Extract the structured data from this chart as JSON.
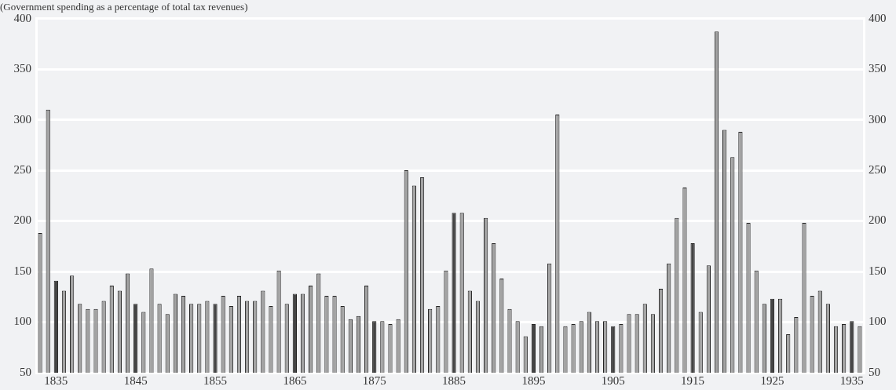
{
  "chart_data": {
    "type": "bar",
    "subtitle": "(Government spending as a percentage of total tax revenues)",
    "categories": [
      null,
      null,
      "1835",
      null,
      null,
      null,
      null,
      null,
      null,
      null,
      null,
      null,
      "1845",
      null,
      null,
      null,
      null,
      null,
      null,
      null,
      null,
      null,
      "1855",
      null,
      null,
      null,
      null,
      null,
      null,
      null,
      null,
      null,
      "1865",
      null,
      null,
      null,
      null,
      null,
      null,
      null,
      null,
      null,
      "1875",
      null,
      null,
      null,
      null,
      null,
      null,
      null,
      null,
      null,
      "1885",
      null,
      null,
      null,
      null,
      null,
      null,
      null,
      null,
      null,
      "1895",
      null,
      null,
      null,
      null,
      null,
      null,
      null,
      null,
      null,
      "1905",
      null,
      null,
      null,
      null,
      null,
      null,
      null,
      null,
      null,
      "1915",
      null,
      null,
      null,
      null,
      null,
      null,
      null,
      null,
      null,
      "1925",
      null,
      null,
      null,
      null,
      null,
      null,
      null,
      null,
      null,
      "1935",
      null
    ],
    "values": [
      188,
      310,
      141,
      131,
      146,
      118,
      113,
      113,
      121,
      136,
      131,
      148,
      118,
      110,
      153,
      118,
      108,
      128,
      126,
      118,
      118,
      121,
      118,
      126,
      116,
      126,
      121,
      121,
      131,
      116,
      151,
      118,
      128,
      128,
      136,
      148,
      126,
      126,
      116,
      103,
      106,
      136,
      101,
      101,
      98,
      103,
      250,
      235,
      243,
      113,
      116,
      151,
      208,
      208,
      131,
      121,
      203,
      178,
      143,
      113,
      101,
      86,
      98,
      96,
      158,
      305,
      96,
      98,
      101,
      110,
      101,
      101,
      96,
      98,
      108,
      108,
      118,
      108,
      133,
      158,
      203,
      233,
      178,
      110,
      156,
      387,
      290,
      263,
      288,
      198,
      151,
      118,
      123,
      123,
      88,
      105,
      198,
      126,
      131,
      118,
      96,
      98,
      101,
      96
    ],
    "colors": [
      "#a3a3a3",
      "#a3a3a3",
      "#444444",
      "#a3a3a3",
      "#a3a3a3",
      "#a3a3a3",
      "#a3a3a3",
      "#a3a3a3",
      "#a3a3a3",
      "#a3a3a3",
      "#a3a3a3",
      "#a3a3a3",
      "#444444",
      "#a3a3a3",
      "#a3a3a3",
      "#a3a3a3",
      "#a3a3a3",
      "#a3a3a3",
      "#a3a3a3",
      "#a3a3a3",
      "#a3a3a3",
      "#a3a3a3",
      "#444444",
      "#a3a3a3",
      "#a3a3a3",
      "#a3a3a3",
      "#a3a3a3",
      "#a3a3a3",
      "#a3a3a3",
      "#a3a3a3",
      "#a3a3a3",
      "#a3a3a3",
      "#444444",
      "#a3a3a3",
      "#a3a3a3",
      "#a3a3a3",
      "#a3a3a3",
      "#a3a3a3",
      "#a3a3a3",
      "#a3a3a3",
      "#a3a3a3",
      "#a3a3a3",
      "#444444",
      "#a3a3a3",
      "#a3a3a3",
      "#a3a3a3",
      "#a3a3a3",
      "#a3a3a3",
      "#a3a3a3",
      "#a3a3a3",
      "#a3a3a3",
      "#a3a3a3",
      "#444444",
      "#a3a3a3",
      "#a3a3a3",
      "#a3a3a3",
      "#a3a3a3",
      "#a3a3a3",
      "#a3a3a3",
      "#a3a3a3",
      "#a3a3a3",
      "#a3a3a3",
      "#444444",
      "#a3a3a3",
      "#a3a3a3",
      "#a3a3a3",
      "#a3a3a3",
      "#a3a3a3",
      "#a3a3a3",
      "#a3a3a3",
      "#a3a3a3",
      "#a3a3a3",
      "#444444",
      "#a3a3a3",
      "#a3a3a3",
      "#a3a3a3",
      "#a3a3a3",
      "#a3a3a3",
      "#a3a3a3",
      "#a3a3a3",
      "#a3a3a3",
      "#a3a3a3",
      "#444444",
      "#a3a3a3",
      "#a3a3a3",
      "#a3a3a3",
      "#a3a3a3",
      "#a3a3a3",
      "#a3a3a3",
      "#a3a3a3",
      "#a3a3a3",
      "#a3a3a3",
      "#444444",
      "#a3a3a3",
      "#a3a3a3",
      "#a3a3a3",
      "#a3a3a3",
      "#a3a3a3",
      "#a3a3a3",
      "#a3a3a3",
      "#a3a3a3",
      "#a3a3a3",
      "#444444",
      "#a3a3a3"
    ],
    "ylim": [
      50,
      400
    ],
    "yticks": [
      50,
      100,
      150,
      200,
      250,
      300,
      350,
      400
    ],
    "y2lim": [
      50,
      400
    ],
    "y2ticks": [
      50,
      100,
      150,
      200,
      250,
      300,
      350,
      400
    ],
    "grid": "y",
    "legend": false
  }
}
